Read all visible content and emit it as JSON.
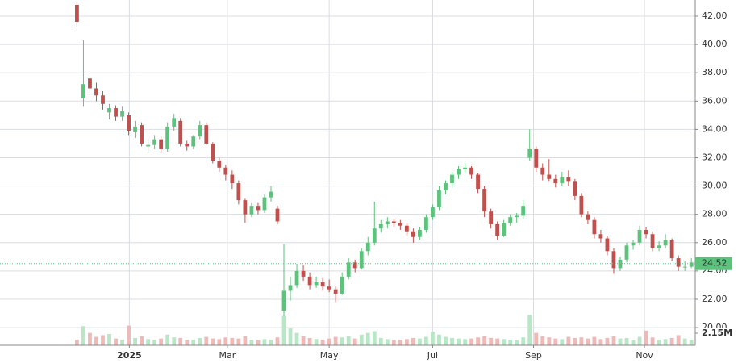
{
  "chart_data": {
    "type": "candlestick",
    "up_color": "#5cc27c",
    "down_color": "#c0504d",
    "up_volume_color": "#b9e6c6",
    "down_volume_color": "#efb9b8",
    "xlim": [
      -11.9,
      95.6
    ],
    "xticks": [
      {
        "value": 8.1,
        "label": "2025"
      },
      {
        "value": 23.25,
        "label": "Mar"
      },
      {
        "value": 39,
        "label": "May"
      },
      {
        "value": 55,
        "label": "Jul"
      },
      {
        "value": 70.6,
        "label": "Sep"
      },
      {
        "value": 87.75,
        "label": "Nov"
      }
    ],
    "ylim": [
      18.75,
      43.14
    ],
    "yticks": [
      {
        "value": 20,
        "label": "20.00"
      },
      {
        "value": 22,
        "label": "22.00"
      },
      {
        "value": 24,
        "label": "24.00"
      },
      {
        "value": 26,
        "label": "26.00"
      },
      {
        "value": 28,
        "label": "28.00"
      },
      {
        "value": 30,
        "label": "30.00"
      },
      {
        "value": 32,
        "label": "32.00"
      },
      {
        "value": 34,
        "label": "34.00"
      },
      {
        "value": 36,
        "label": "36.00"
      },
      {
        "value": 38,
        "label": "38.00"
      },
      {
        "value": 40,
        "label": "40.00"
      },
      {
        "value": 42,
        "label": "42.00"
      }
    ],
    "volume_lim": [
      0,
      61.3
    ],
    "volume_ticks": [
      {
        "value": 2.15,
        "label": "2.15M"
      }
    ],
    "last_price": 24.52,
    "grid": true,
    "candles": [
      [
        42.8,
        43.0,
        41.2,
        41.6,
        1.0
      ],
      [
        36.2,
        40.3,
        35.6,
        37.2,
        3.4
      ],
      [
        37.6,
        38.0,
        36.4,
        36.9,
        2.2
      ],
      [
        36.9,
        37.3,
        36.0,
        36.4,
        1.5
      ],
      [
        36.4,
        36.7,
        35.4,
        35.8,
        1.8
      ],
      [
        35.2,
        35.8,
        34.7,
        35.5,
        2.0
      ],
      [
        35.5,
        35.7,
        34.6,
        34.9,
        1.2
      ],
      [
        34.9,
        35.6,
        34.6,
        35.3,
        1.0
      ],
      [
        35.0,
        35.2,
        33.6,
        33.9,
        3.5
      ],
      [
        33.8,
        34.6,
        33.4,
        34.2,
        1.3
      ],
      [
        34.3,
        34.5,
        32.8,
        33.0,
        1.6
      ],
      [
        32.8,
        33.3,
        32.3,
        32.9,
        1.1
      ],
      [
        32.9,
        33.6,
        32.6,
        33.3,
        1.0
      ],
      [
        33.3,
        33.5,
        32.3,
        32.6,
        1.2
      ],
      [
        32.6,
        34.5,
        32.4,
        34.2,
        1.9
      ],
      [
        34.2,
        35.1,
        33.9,
        34.8,
        1.4
      ],
      [
        34.6,
        34.8,
        32.8,
        33.0,
        1.3
      ],
      [
        33.0,
        33.2,
        32.5,
        32.8,
        0.9
      ],
      [
        32.8,
        33.6,
        32.6,
        33.5,
        1.0
      ],
      [
        33.5,
        34.6,
        33.3,
        34.3,
        1.3
      ],
      [
        34.3,
        34.5,
        32.9,
        33.0,
        1.5
      ],
      [
        33.0,
        33.1,
        31.6,
        31.8,
        1.2
      ],
      [
        31.8,
        32.0,
        31.0,
        31.3,
        1.1
      ],
      [
        31.3,
        31.5,
        30.4,
        30.8,
        1.4
      ],
      [
        30.8,
        31.1,
        29.8,
        30.2,
        1.3
      ],
      [
        30.2,
        30.4,
        28.7,
        29.0,
        1.2
      ],
      [
        29.0,
        29.1,
        27.4,
        28.0,
        1.6
      ],
      [
        28.0,
        28.8,
        27.8,
        28.6,
        1.0
      ],
      [
        28.6,
        28.8,
        28.0,
        28.3,
        0.9
      ],
      [
        28.3,
        29.4,
        28.1,
        29.2,
        1.1
      ],
      [
        29.2,
        30.0,
        28.9,
        29.6,
        1.0
      ],
      [
        28.4,
        28.6,
        27.3,
        27.5,
        1.4
      ],
      [
        21.2,
        25.9,
        20.8,
        22.6,
        5.2
      ],
      [
        22.6,
        23.6,
        21.9,
        23.0,
        3.0
      ],
      [
        23.0,
        24.5,
        22.8,
        24.0,
        2.2
      ],
      [
        24.0,
        24.4,
        23.3,
        23.6,
        1.6
      ],
      [
        23.6,
        23.9,
        22.7,
        23.0,
        1.3
      ],
      [
        23.0,
        23.6,
        22.8,
        23.2,
        1.1
      ],
      [
        23.2,
        23.5,
        22.6,
        22.9,
        1.0
      ],
      [
        22.9,
        23.4,
        22.5,
        22.7,
        1.2
      ],
      [
        22.7,
        22.9,
        21.8,
        22.4,
        1.5
      ],
      [
        22.4,
        23.9,
        22.3,
        23.6,
        1.4
      ],
      [
        23.6,
        24.9,
        23.4,
        24.6,
        1.6
      ],
      [
        24.6,
        24.8,
        23.9,
        24.2,
        1.2
      ],
      [
        24.2,
        25.6,
        24.1,
        25.4,
        1.9
      ],
      [
        25.4,
        26.4,
        25.1,
        26.0,
        2.2
      ],
      [
        26.0,
        28.9,
        25.8,
        27.0,
        2.5
      ],
      [
        27.0,
        27.6,
        26.7,
        27.3,
        1.3
      ],
      [
        27.3,
        27.8,
        27.0,
        27.5,
        1.1
      ],
      [
        27.5,
        27.7,
        27.1,
        27.4,
        0.9
      ],
      [
        27.4,
        27.6,
        26.9,
        27.2,
        1.0
      ],
      [
        27.2,
        27.4,
        26.5,
        26.8,
        1.1
      ],
      [
        26.8,
        27.0,
        26.0,
        26.4,
        1.3
      ],
      [
        26.4,
        27.1,
        26.2,
        26.9,
        1.2
      ],
      [
        26.9,
        28.0,
        26.7,
        27.8,
        1.5
      ],
      [
        27.8,
        28.7,
        27.6,
        28.5,
        2.4
      ],
      [
        28.5,
        30.0,
        28.3,
        29.7,
        1.9
      ],
      [
        29.7,
        30.4,
        29.4,
        30.2,
        1.5
      ],
      [
        30.2,
        31.0,
        29.9,
        30.8,
        1.3
      ],
      [
        30.8,
        31.4,
        30.5,
        31.2,
        1.2
      ],
      [
        31.2,
        31.6,
        30.9,
        31.3,
        1.1
      ],
      [
        31.3,
        31.4,
        30.5,
        30.8,
        1.2
      ],
      [
        30.8,
        30.9,
        29.5,
        29.8,
        1.4
      ],
      [
        29.8,
        30.0,
        27.8,
        28.2,
        1.6
      ],
      [
        28.2,
        28.4,
        27.0,
        27.3,
        1.3
      ],
      [
        27.3,
        27.5,
        26.2,
        26.5,
        1.2
      ],
      [
        26.5,
        27.6,
        26.4,
        27.4,
        1.1
      ],
      [
        27.4,
        28.0,
        27.2,
        27.8,
        1.0
      ],
      [
        27.8,
        28.1,
        27.4,
        27.9,
        0.9
      ],
      [
        27.9,
        29.0,
        27.7,
        28.6,
        1.4
      ],
      [
        32.0,
        34.0,
        31.8,
        32.6,
        5.4
      ],
      [
        32.6,
        32.8,
        31.0,
        31.3,
        2.2
      ],
      [
        31.3,
        31.6,
        30.4,
        30.8,
        1.6
      ],
      [
        30.8,
        31.9,
        30.3,
        30.5,
        1.4
      ],
      [
        30.5,
        30.8,
        29.9,
        30.2,
        1.2
      ],
      [
        30.2,
        31.0,
        30.0,
        30.6,
        1.1
      ],
      [
        30.6,
        31.1,
        30.0,
        30.3,
        1.5
      ],
      [
        30.3,
        30.5,
        29.0,
        29.3,
        1.3
      ],
      [
        29.3,
        29.5,
        27.8,
        28.0,
        1.4
      ],
      [
        28.0,
        28.2,
        27.3,
        27.6,
        1.2
      ],
      [
        27.6,
        27.8,
        26.3,
        26.6,
        1.5
      ],
      [
        26.6,
        26.9,
        26.0,
        26.3,
        1.1
      ],
      [
        26.3,
        26.5,
        25.1,
        25.4,
        1.3
      ],
      [
        25.4,
        25.6,
        23.8,
        24.2,
        1.6
      ],
      [
        24.2,
        25.0,
        24.0,
        24.8,
        1.2
      ],
      [
        24.8,
        26.0,
        24.6,
        25.8,
        1.3
      ],
      [
        25.8,
        26.2,
        25.5,
        26.0,
        1.0
      ],
      [
        26.0,
        27.2,
        25.8,
        26.9,
        1.5
      ],
      [
        26.9,
        27.1,
        26.3,
        26.6,
        2.6
      ],
      [
        26.6,
        26.8,
        25.4,
        25.6,
        1.4
      ],
      [
        25.6,
        26.1,
        25.4,
        25.8,
        1.0
      ],
      [
        25.8,
        26.6,
        25.6,
        26.2,
        1.1
      ],
      [
        26.2,
        26.3,
        24.7,
        24.9,
        1.3
      ],
      [
        24.9,
        25.1,
        24.0,
        24.3,
        1.8
      ],
      [
        24.3,
        24.7,
        24.0,
        24.3,
        1.2
      ],
      [
        24.3,
        24.9,
        24.2,
        24.6,
        1.0
      ]
    ]
  }
}
